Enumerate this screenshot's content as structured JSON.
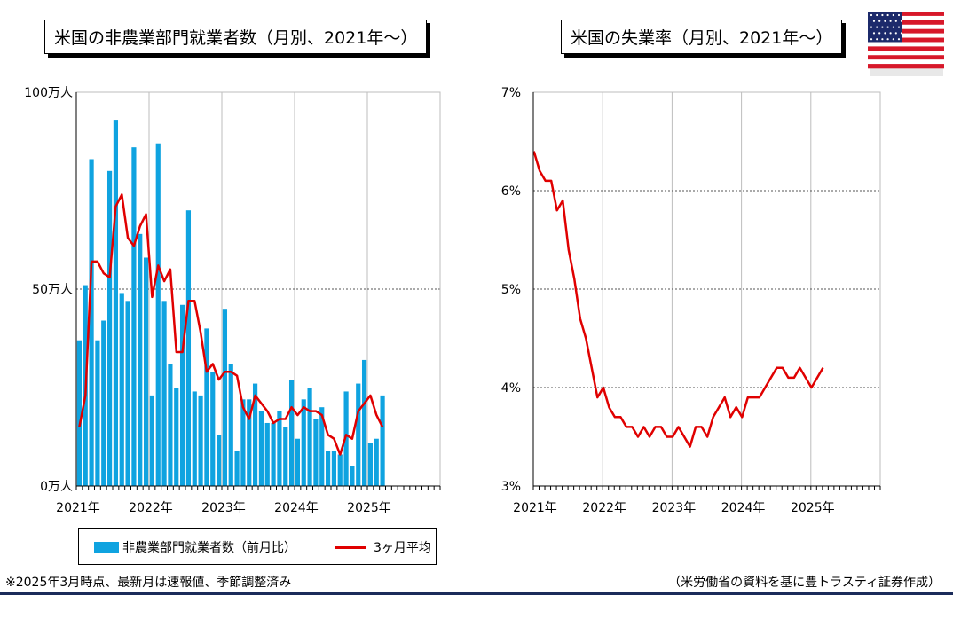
{
  "left_title": "米国の非農業部門就業者数（月別、2021年～）",
  "right_title": "米国の失業率（月別、2021年～）",
  "legend": {
    "bar_label": "非農業部門就業者数（前月比）",
    "line_label": "3ヶ月平均"
  },
  "note": "※2025年3月時点、最新月は速報値、季節調整済み",
  "source": "（米労働省の資料を基に豊トラスティ証券作成）",
  "colors": {
    "bar": "#0fa3e0",
    "line": "#e00000",
    "footer": "#1b2b5a"
  },
  "flag_icon": "us-flag-icon",
  "chart_data": [
    {
      "type": "bar",
      "title": "米国の非農業部門就業者数（月別、2021年～）",
      "ylim": [
        0,
        100
      ],
      "y_ticks": [
        "0万人",
        "50万人",
        "100万人"
      ],
      "x_ticks": [
        "2021年",
        "2022年",
        "2023年",
        "2024年",
        "2025年"
      ],
      "months": [
        "2021-01",
        "2021-02",
        "2021-03",
        "2021-04",
        "2021-05",
        "2021-06",
        "2021-07",
        "2021-08",
        "2021-09",
        "2021-10",
        "2021-11",
        "2021-12",
        "2022-01",
        "2022-02",
        "2022-03",
        "2022-04",
        "2022-05",
        "2022-06",
        "2022-07",
        "2022-08",
        "2022-09",
        "2022-10",
        "2022-11",
        "2022-12",
        "2023-01",
        "2023-02",
        "2023-03",
        "2023-04",
        "2023-05",
        "2023-06",
        "2023-07",
        "2023-08",
        "2023-09",
        "2023-10",
        "2023-11",
        "2023-12",
        "2024-01",
        "2024-02",
        "2024-03",
        "2024-04",
        "2024-05",
        "2024-06",
        "2024-07",
        "2024-08",
        "2024-09",
        "2024-10",
        "2024-11",
        "2024-12",
        "2025-01",
        "2025-02",
        "2025-03"
      ],
      "series": [
        {
          "name": "非農業部門就業者数（前月比）",
          "values": [
            37,
            51,
            83,
            37,
            42,
            80,
            93,
            49,
            47,
            86,
            64,
            58,
            23,
            87,
            47,
            31,
            25,
            46,
            70,
            24,
            23,
            40,
            29,
            13,
            45,
            31,
            9,
            22,
            22,
            26,
            19,
            16,
            16,
            19,
            15,
            27,
            12,
            22,
            25,
            17,
            20,
            9,
            9,
            8,
            24,
            5,
            26,
            32,
            11,
            12,
            23
          ]
        },
        {
          "name": "3ヶ月平均",
          "values": [
            15,
            23,
            57,
            57,
            54,
            53,
            71,
            74,
            63,
            61,
            66,
            69,
            48,
            56,
            52,
            55,
            34,
            34,
            47,
            47,
            39,
            29,
            31,
            27,
            29,
            29,
            28,
            20,
            17,
            23,
            21,
            19,
            16,
            17,
            17,
            20,
            18,
            20,
            19,
            19,
            18,
            13,
            12,
            8,
            13,
            12,
            19,
            21,
            23,
            18,
            15
          ]
        }
      ]
    },
    {
      "type": "line",
      "title": "米国の失業率（月別、2021年～）",
      "ylim": [
        3,
        7
      ],
      "y_ticks": [
        "3%",
        "4%",
        "5%",
        "6%",
        "7%"
      ],
      "x_ticks": [
        "2021年",
        "2022年",
        "2023年",
        "2024年",
        "2025年"
      ],
      "series": [
        {
          "name": "失業率",
          "values": [
            6.4,
            6.2,
            6.1,
            6.1,
            5.8,
            5.9,
            5.4,
            5.1,
            4.7,
            4.5,
            4.2,
            3.9,
            4.0,
            3.8,
            3.7,
            3.7,
            3.6,
            3.6,
            3.5,
            3.6,
            3.5,
            3.6,
            3.6,
            3.5,
            3.5,
            3.6,
            3.5,
            3.4,
            3.6,
            3.6,
            3.5,
            3.7,
            3.8,
            3.9,
            3.7,
            3.8,
            3.7,
            3.9,
            3.9,
            3.9,
            4.0,
            4.1,
            4.2,
            4.2,
            4.1,
            4.1,
            4.2,
            4.1,
            4.0,
            4.1,
            4.2
          ]
        }
      ]
    }
  ]
}
